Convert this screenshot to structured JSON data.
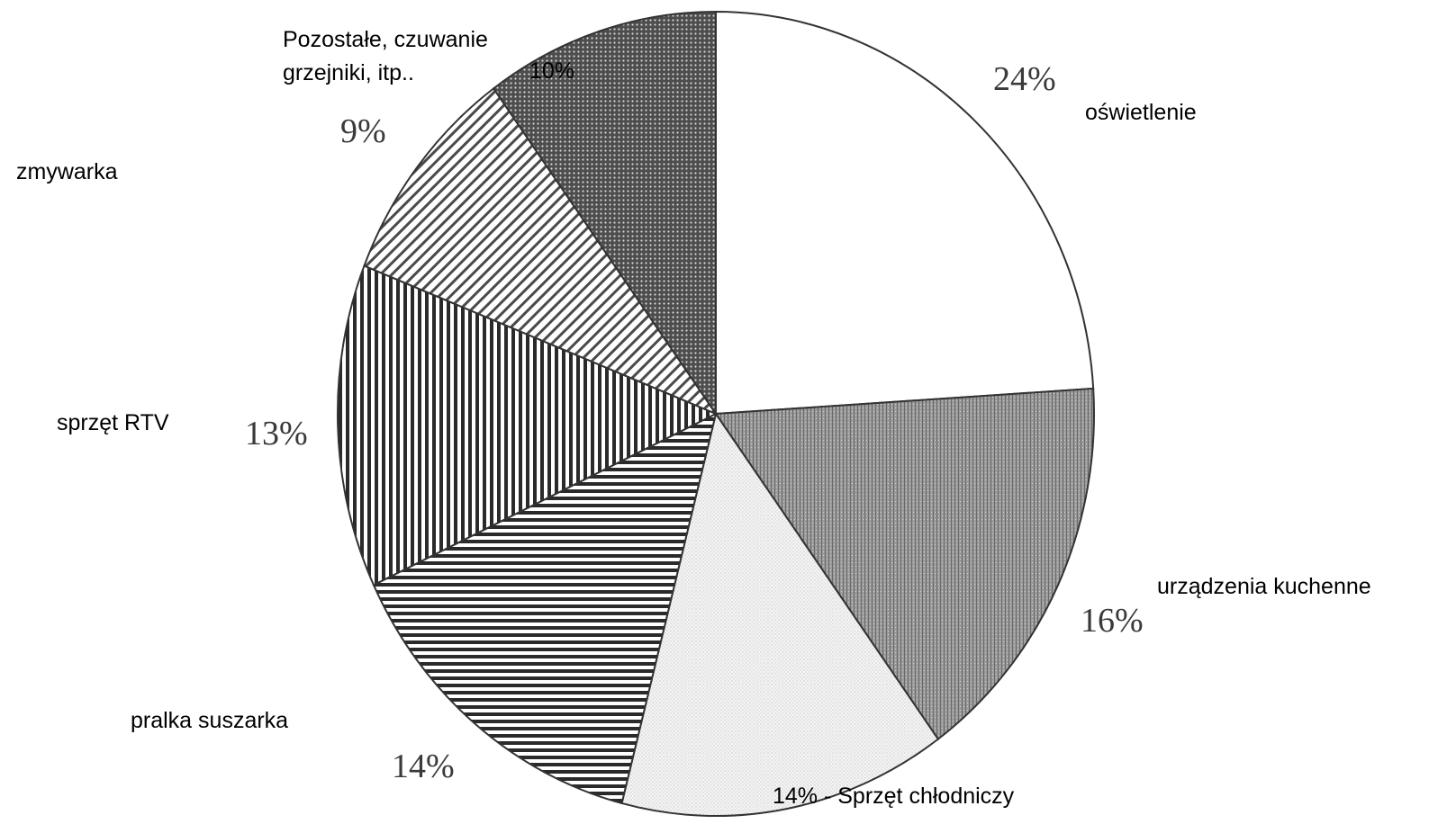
{
  "chart_data": {
    "type": "pie",
    "slices": [
      {
        "label": "oświetlenie",
        "value": 24,
        "pct_text": "24%",
        "fill": "none"
      },
      {
        "label": "urządzenia kuchenne",
        "value": 16,
        "pct_text": "16%",
        "fill": "gray-dense"
      },
      {
        "label": "Sprzęt chłodniczy",
        "value": 14,
        "pct_text": "14% - Sprzęt chłodniczy",
        "fill": "light-dots"
      },
      {
        "label": "pralka suszarka",
        "value": 14,
        "pct_text": "14%",
        "fill": "horizontal-lines"
      },
      {
        "label": "sprzęt RTV",
        "value": 13,
        "pct_text": "13%",
        "fill": "vertical-lines"
      },
      {
        "label": "zmywarka",
        "value": 9,
        "pct_text": "9%",
        "fill": "diagonal-lines"
      },
      {
        "label": "Pozostałe, czuwanie grzejniki, itp..",
        "value": 10,
        "pct_text": "10%",
        "fill": "dark-dots"
      }
    ],
    "title": "",
    "legend": "none"
  },
  "labels": {
    "oswietlenie": "oświetlenie",
    "urzadzenia": "urządzenia kuchenne",
    "chlodniczy": "14% - Sprzęt chłodniczy",
    "pralka": "pralka suszarka",
    "rtv": "sprzęt RTV",
    "zmywarka": "zmywarka",
    "pozostale_line1": "Pozostałe, czuwanie",
    "pozostale_line2": "grzejniki, itp..",
    "pct_oswietlenie": "24%",
    "pct_urzadzenia": "16%",
    "pct_pralka": "14%",
    "pct_rtv": "13%",
    "pct_zmywarka": "9%",
    "pct_pozostale": "10%"
  }
}
